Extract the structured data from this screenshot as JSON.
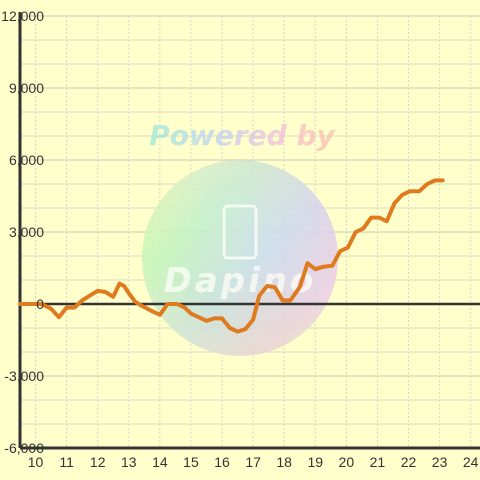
{
  "chart_data": {
    "type": "line",
    "title": "",
    "xlabel": "",
    "ylabel": "",
    "xlim": [
      9.5,
      24.3
    ],
    "ylim": [
      -6000,
      12000
    ],
    "x_ticks": [
      10,
      11,
      12,
      13,
      14,
      15,
      16,
      17,
      18,
      19,
      20,
      21,
      22,
      23,
      24
    ],
    "x_tick_labels": [
      "10",
      "11",
      "12",
      "13",
      "14",
      "15",
      "16",
      "17",
      "18",
      "19",
      "20",
      "21",
      "22",
      "23",
      "24"
    ],
    "y_ticks": [
      -6000,
      -3000,
      0,
      3000,
      6000,
      9000,
      12000
    ],
    "y_tick_labels": [
      "-6,000",
      "-3,000",
      "0",
      "3,000",
      "6,000",
      "9,000",
      "12,000"
    ],
    "grid": true,
    "series": [
      {
        "color": "#e07a1f",
        "points": [
          [
            9.5,
            0
          ],
          [
            10.0,
            0
          ],
          [
            10.2,
            0
          ],
          [
            10.5,
            -200
          ],
          [
            10.75,
            -550
          ],
          [
            11.0,
            -150
          ],
          [
            11.25,
            -150
          ],
          [
            11.5,
            150
          ],
          [
            11.75,
            350
          ],
          [
            12.0,
            550
          ],
          [
            12.25,
            500
          ],
          [
            12.5,
            300
          ],
          [
            12.7,
            850
          ],
          [
            12.85,
            750
          ],
          [
            13.0,
            450
          ],
          [
            13.2,
            100
          ],
          [
            13.45,
            -100
          ],
          [
            13.75,
            -300
          ],
          [
            14.0,
            -450
          ],
          [
            14.25,
            0
          ],
          [
            14.55,
            0
          ],
          [
            14.8,
            -150
          ],
          [
            15.0,
            -400
          ],
          [
            15.25,
            -550
          ],
          [
            15.5,
            -700
          ],
          [
            15.75,
            -600
          ],
          [
            16.0,
            -600
          ],
          [
            16.25,
            -1000
          ],
          [
            16.5,
            -1150
          ],
          [
            16.75,
            -1050
          ],
          [
            17.0,
            -650
          ],
          [
            17.2,
            350
          ],
          [
            17.45,
            750
          ],
          [
            17.7,
            700
          ],
          [
            17.95,
            150
          ],
          [
            18.2,
            150
          ],
          [
            18.5,
            700
          ],
          [
            18.75,
            1700
          ],
          [
            19.0,
            1450
          ],
          [
            19.25,
            1550
          ],
          [
            19.55,
            1600
          ],
          [
            19.8,
            2200
          ],
          [
            20.05,
            2350
          ],
          [
            20.3,
            3000
          ],
          [
            20.55,
            3150
          ],
          [
            20.8,
            3600
          ],
          [
            21.05,
            3600
          ],
          [
            21.3,
            3450
          ],
          [
            21.55,
            4200
          ],
          [
            21.8,
            4550
          ],
          [
            22.05,
            4700
          ],
          [
            22.35,
            4700
          ],
          [
            22.6,
            5000
          ],
          [
            22.85,
            5150
          ],
          [
            23.1,
            5150
          ]
        ]
      }
    ]
  },
  "watermark": {
    "line1": "Powered by",
    "line2": "Dapino"
  },
  "colors": {
    "background": "#ffffcc",
    "grid_major": "#c8c8b4",
    "grid_minor": "#d8d8c4",
    "axis": "#333333",
    "tick_text": "#333333",
    "line": "#e07a1f"
  }
}
